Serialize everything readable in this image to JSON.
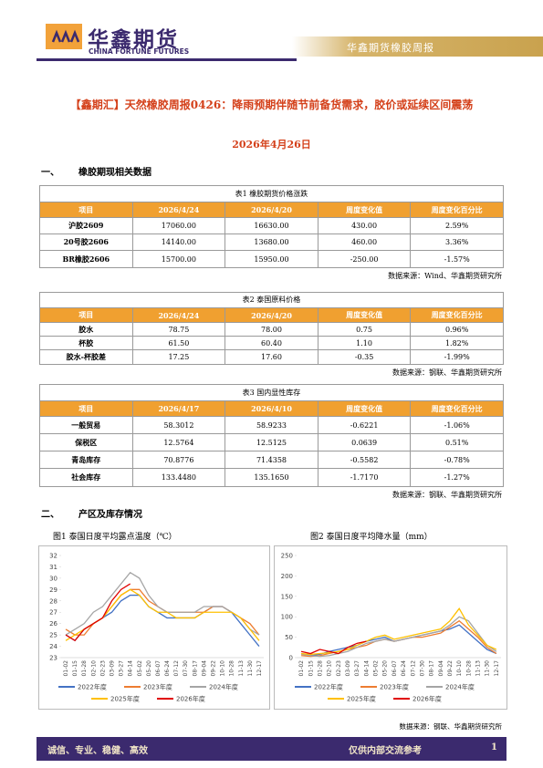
{
  "header": {
    "logo_cn": "华鑫期货",
    "logo_en": "CHINA FORTUNE FUTURES",
    "report_name": "华鑫期货橡胶周报"
  },
  "title": "【鑫期汇】天然橡胶周报0426：降雨预期伴随节前备货需求，胶价或延续区间震荡",
  "date": "2026年4月26日",
  "sections": [
    {
      "number": "一、",
      "title": "橡胶期现相关数据"
    },
    {
      "number": "二、",
      "title": "产区及库存情况"
    }
  ],
  "tables": [
    {
      "caption": "表1 橡胶期货价格涨跌",
      "columns": [
        "项目",
        "2026/4/24",
        "2026/4/20",
        "周度变化值",
        "周度变化百分比"
      ],
      "rows": [
        [
          "沪胶2609",
          "17060.00",
          "16630.00",
          "430.00",
          "2.59%"
        ],
        [
          "20号胶2606",
          "14140.00",
          "13680.00",
          "460.00",
          "3.36%"
        ],
        [
          "BR橡胶2606",
          "15700.00",
          "15950.00",
          "-250.00",
          "-1.57%"
        ]
      ],
      "source": "数据来源：Wind、华鑫期货研究所"
    },
    {
      "caption": "表2 泰国原料价格",
      "columns": [
        "项目",
        "2026/4/24",
        "2026/4/20",
        "周度变化值",
        "周度变化百分比"
      ],
      "rows": [
        [
          "胶水",
          "78.75",
          "78.00",
          "0.75",
          "0.96%"
        ],
        [
          "杯胶",
          "61.50",
          "60.40",
          "1.10",
          "1.82%"
        ],
        [
          "胶水-杯胶差",
          "17.25",
          "17.60",
          "-0.35",
          "-1.99%"
        ]
      ],
      "source": "数据来源：钢联、华鑫期货研究所"
    },
    {
      "caption": "表3 国内显性库存",
      "columns": [
        "项目",
        "2026/4/17",
        "2026/4/10",
        "周度变化值",
        "周度变化百分比"
      ],
      "rows": [
        [
          "一般贸易",
          "58.3012",
          "58.9233",
          "-0.6221",
          "-1.06%"
        ],
        [
          "保税区",
          "12.5764",
          "12.5125",
          "0.0639",
          "0.51%"
        ],
        [
          "青岛库存",
          "70.8776",
          "71.4358",
          "-0.5582",
          "-0.78%"
        ],
        [
          "社会库存",
          "133.4480",
          "135.1650",
          "-1.7170",
          "-1.27%"
        ]
      ],
      "source": "数据来源：钢联、华鑫期货研究所"
    }
  ],
  "chart_data": [
    {
      "type": "line",
      "title": "图1 泰国日度平均露点温度（℃）",
      "legend": "bottom",
      "grid": false,
      "categories": [
        "01-02",
        "01-15",
        "01-28",
        "02-10",
        "02-23",
        "03-09",
        "03-27",
        "04-14",
        "05-02",
        "05-20",
        "06-07",
        "06-24",
        "07-12",
        "07-30",
        "08-17",
        "09-04",
        "09-22",
        "10-10",
        "10-28",
        "11-13",
        "11-30",
        "12-17"
      ],
      "ylim": [
        23,
        32
      ],
      "yticks": [
        23,
        24,
        25,
        26,
        27,
        28,
        29,
        30,
        31,
        32
      ],
      "series": [
        {
          "name": "2022年度",
          "color": "#4472c4",
          "values": [
            25,
            24.5,
            25.5,
            26,
            26.5,
            27,
            28,
            28.5,
            28.5,
            27.5,
            27,
            26.5,
            26.5,
            26.5,
            26.5,
            27,
            27.5,
            27.5,
            27,
            26,
            25,
            24
          ]
        },
        {
          "name": "2023年度",
          "color": "#ed7d31",
          "values": [
            25.5,
            25,
            25,
            26,
            26.5,
            27.5,
            28.5,
            29,
            29,
            28,
            27.5,
            27,
            27,
            27,
            27,
            27,
            27.5,
            27.5,
            27,
            26.5,
            26,
            25
          ]
        },
        {
          "name": "2024年度",
          "color": "#a5a5a5",
          "values": [
            25,
            25.5,
            26,
            27,
            27.5,
            28.5,
            29.5,
            30.5,
            30,
            28.5,
            27.5,
            27,
            27,
            27,
            27,
            27.5,
            27.5,
            27.5,
            27,
            26.5,
            25.5,
            25
          ]
        },
        {
          "name": "2025年度",
          "color": "#ffc000",
          "values": [
            24.5,
            25,
            25.5,
            26,
            26.5,
            27.5,
            28.5,
            29,
            28.5,
            27.5,
            27,
            27,
            26.5,
            26.5,
            26.5,
            27,
            27,
            27,
            27,
            26.5,
            25.5,
            24.5
          ]
        },
        {
          "name": "2026年度",
          "color": "#e00000",
          "values": [
            25,
            24.5,
            25.5,
            26,
            26.5,
            28,
            29,
            29.5,
            null,
            null,
            null,
            null,
            null,
            null,
            null,
            null,
            null,
            null,
            null,
            null,
            null,
            null
          ]
        }
      ]
    },
    {
      "type": "line",
      "title": "图2 泰国日度平均降水量（mm）",
      "legend": "bottom",
      "grid": false,
      "categories": [
        "01-02",
        "01-15",
        "01-28",
        "02-10",
        "02-23",
        "03-09",
        "03-27",
        "04-14",
        "05-02",
        "05-20",
        "06-07",
        "06-24",
        "07-12",
        "07-30",
        "08-17",
        "09-04",
        "09-22",
        "10-10",
        "10-28",
        "11-13",
        "11-30",
        "12-17"
      ],
      "ylim": [
        0,
        250
      ],
      "yticks": [
        0,
        50,
        100,
        150,
        200,
        250
      ],
      "series": [
        {
          "name": "2022年度",
          "color": "#4472c4",
          "values": [
            10,
            5,
            8,
            15,
            20,
            25,
            30,
            40,
            45,
            50,
            40,
            45,
            50,
            55,
            60,
            65,
            70,
            80,
            60,
            40,
            20,
            10
          ]
        },
        {
          "name": "2023年度",
          "color": "#ed7d31",
          "values": [
            5,
            3,
            5,
            10,
            15,
            20,
            25,
            30,
            40,
            45,
            40,
            45,
            50,
            50,
            55,
            60,
            75,
            90,
            70,
            50,
            25,
            10
          ]
        },
        {
          "name": "2024年度",
          "color": "#a5a5a5",
          "values": [
            8,
            5,
            3,
            5,
            10,
            15,
            25,
            35,
            40,
            45,
            40,
            45,
            50,
            55,
            60,
            65,
            80,
            100,
            90,
            60,
            30,
            15
          ]
        },
        {
          "name": "2025年度",
          "color": "#ffc000",
          "values": [
            10,
            8,
            10,
            12,
            15,
            20,
            30,
            40,
            50,
            55,
            45,
            50,
            55,
            60,
            65,
            70,
            90,
            120,
            80,
            55,
            30,
            20
          ]
        },
        {
          "name": "2026年度",
          "color": "#e00000",
          "values": [
            15,
            10,
            20,
            15,
            10,
            25,
            35,
            40,
            null,
            null,
            null,
            null,
            null,
            null,
            null,
            null,
            null,
            null,
            null,
            null,
            null,
            null
          ]
        }
      ]
    }
  ],
  "charts_source": "数据来源：钢联、华鑫期货研究所",
  "footer": {
    "motto": "诚信、专业、稳健、高效",
    "notice": "仅供内部交流参考",
    "page": "1"
  }
}
